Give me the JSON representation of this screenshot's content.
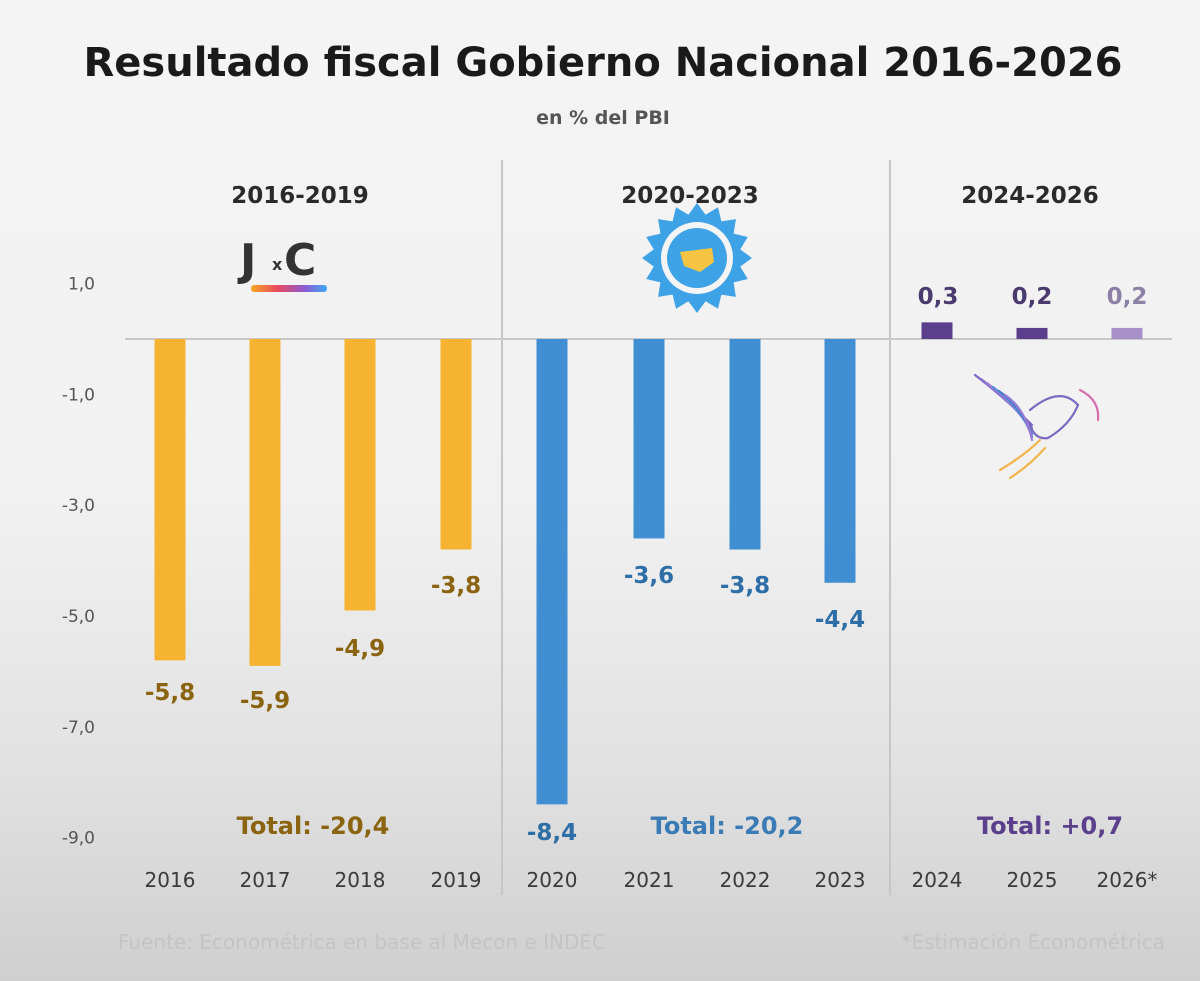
{
  "chart_data": {
    "type": "bar",
    "title": "Resultado fiscal Gobierno Nacional 2016-2026",
    "subtitle": "en % del PBI",
    "categories": [
      "2016",
      "2017",
      "2018",
      "2019",
      "2020",
      "2021",
      "2022",
      "2023",
      "2024",
      "2025",
      "2026*"
    ],
    "values": [
      -5.8,
      -5.9,
      -4.9,
      -3.8,
      -8.4,
      -3.6,
      -3.8,
      -4.4,
      0.3,
      0.2,
      0.2
    ],
    "value_labels": [
      "-5,8",
      "-5,9",
      "-4,9",
      "-3,8",
      "-8,4",
      "-3,6",
      "-3,8",
      "-4,4",
      "0,3",
      "0,2",
      "0,2"
    ],
    "bar_colors": [
      "#f5b331",
      "#f5b331",
      "#f5b331",
      "#f5b331",
      "#3f8fd2",
      "#3f8fd2",
      "#3f8fd2",
      "#3f8fd2",
      "#5b3f8c",
      "#5b3f8c",
      "#a78fc9"
    ],
    "y_ticks": [
      1,
      -1,
      -3,
      -5,
      -7,
      -9
    ],
    "y_tick_labels": [
      "1,0",
      "-1,0",
      "-3,0",
      "-5,0",
      "-7,0",
      "-9,0"
    ],
    "ylim": [
      -9,
      1
    ],
    "groups": [
      {
        "label": "2016-2019",
        "logo_text": "J",
        "logo_small": "x",
        "logo_text2": "C",
        "total": "Total: -20,4",
        "total_color": "#8a6410"
      },
      {
        "label": "2020-2023",
        "total": "Total: -20,2",
        "total_color": "#3a7bb5"
      },
      {
        "label": "2024-2026",
        "total": "Total: +0,7",
        "total_color": "#5b3f8c"
      }
    ],
    "label_colors": {
      "gold": "#8a6410",
      "blue": "#2e6ea7",
      "purple": "#4a3a6e",
      "lilac": "#8c80a6"
    },
    "source": "Fuente: Econométrica en base al Mecon e INDEC",
    "note": "*Estimación Econométrica"
  }
}
